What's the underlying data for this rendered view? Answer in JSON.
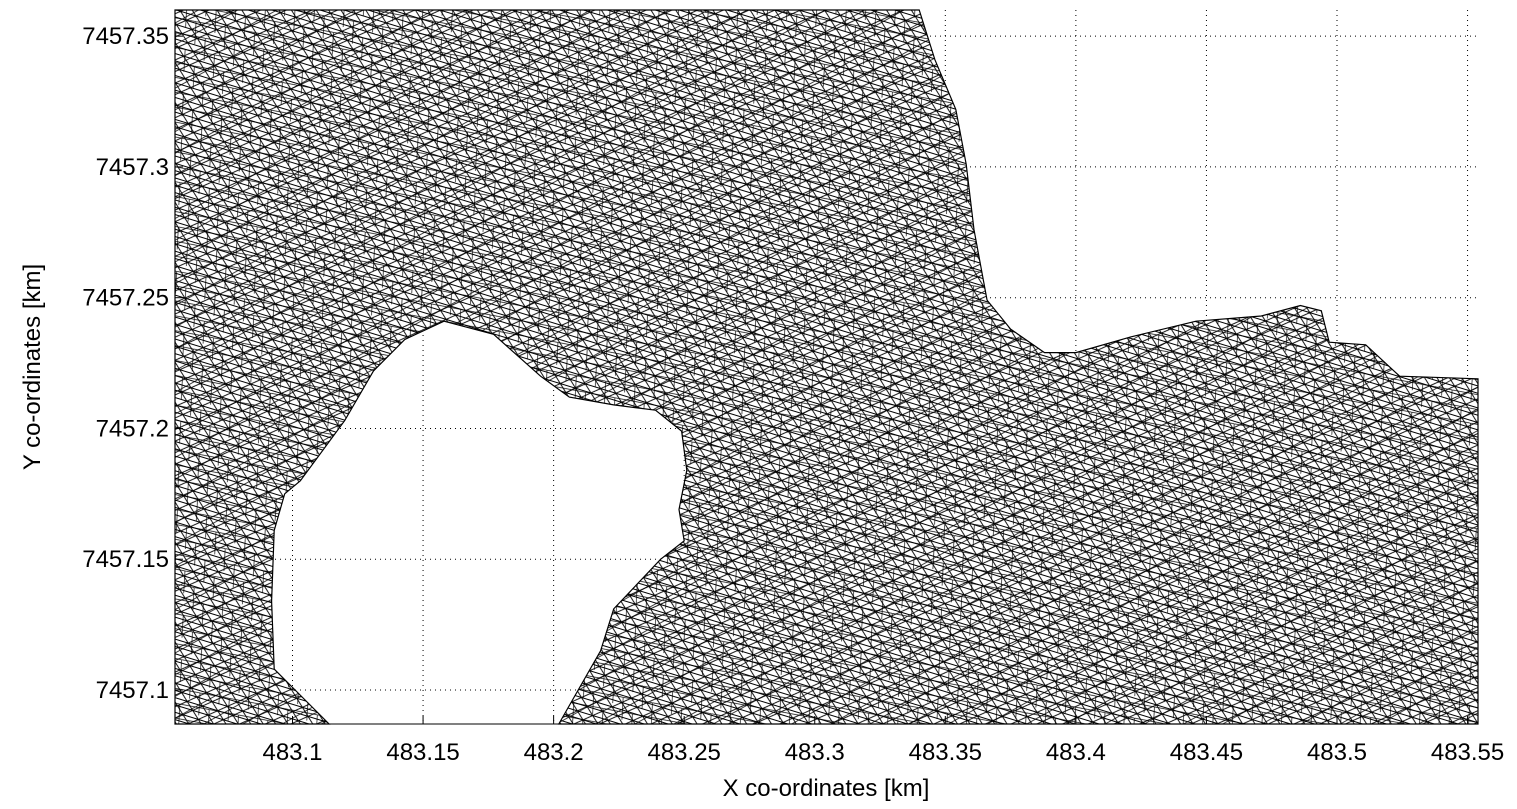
{
  "chart_data": {
    "type": "mesh",
    "xlabel": "X co-ordinates [km]",
    "ylabel": "Y co-ordinates [km]",
    "xlim": [
      483.055,
      483.554
    ],
    "ylim": [
      7457.087,
      7457.36
    ],
    "xticks": [
      483.1,
      483.15,
      483.2,
      483.25,
      483.3,
      483.35,
      483.4,
      483.45,
      483.5,
      483.55
    ],
    "yticks": [
      7457.1,
      7457.15,
      7457.2,
      7457.25,
      7457.3,
      7457.35
    ],
    "grid": true,
    "color": "#000000",
    "boundary": {
      "x": [
        483.055,
        483.34,
        483.346,
        483.354,
        483.358,
        483.361,
        483.366,
        483.375,
        483.388,
        483.4,
        483.421,
        483.446,
        483.471,
        483.486,
        483.494,
        483.497,
        483.511,
        483.524,
        483.554,
        483.554,
        483.202,
        483.218,
        483.223,
        483.241,
        483.25,
        483.248,
        483.251,
        483.249,
        483.239,
        483.223,
        483.206,
        483.195,
        483.177,
        483.158,
        483.143,
        483.131,
        483.12,
        483.103,
        483.097,
        483.093,
        483.092,
        483.093,
        483.101,
        483.114,
        483.055
      ],
      "y": [
        7457.36,
        7457.36,
        7457.341,
        7457.322,
        7457.301,
        7457.276,
        7457.249,
        7457.238,
        7457.229,
        7457.229,
        7457.235,
        7457.241,
        7457.243,
        7457.247,
        7457.245,
        7457.233,
        7457.232,
        7457.22,
        7457.219,
        7457.087,
        7457.087,
        7457.115,
        7457.131,
        7457.15,
        7457.157,
        7457.169,
        7457.184,
        7457.199,
        7457.207,
        7457.209,
        7457.212,
        7457.22,
        7457.236,
        7457.241,
        7457.234,
        7457.222,
        7457.203,
        7457.18,
        7457.175,
        7457.161,
        7457.134,
        7457.108,
        7457.1,
        7457.087,
        7457.087
      ]
    }
  }
}
